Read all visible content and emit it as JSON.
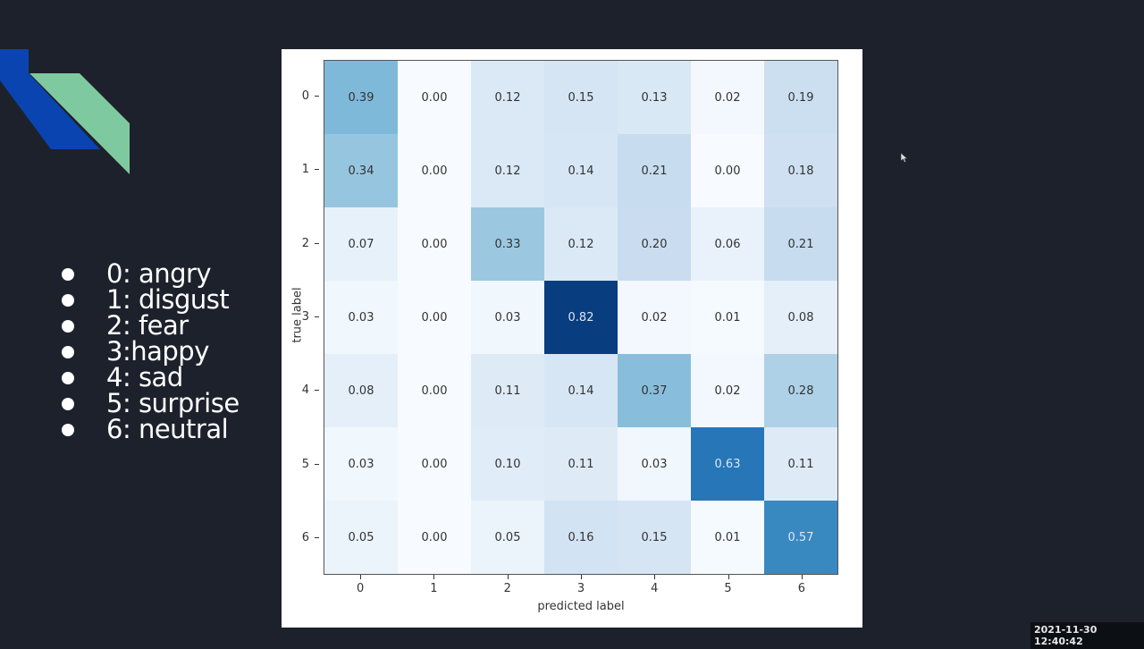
{
  "slide": {
    "background": "#1d212b",
    "accent_colors": {
      "blue": "#0a44b0",
      "green": "#7fc9a1"
    },
    "legend_items": [
      {
        "label": "0: angry"
      },
      {
        "label": "1: disgust"
      },
      {
        "label": "2: fear"
      },
      {
        "label": "3:happy"
      },
      {
        "label": "4: sad"
      },
      {
        "label": "5: surprise"
      },
      {
        "label": "6: neutral"
      }
    ]
  },
  "timestamp": "2021-11-30 12:40:42",
  "chart_data": {
    "type": "heatmap",
    "title": "",
    "xlabel": "predicted label",
    "ylabel": "true label",
    "x_ticks": [
      "0",
      "1",
      "2",
      "3",
      "4",
      "5",
      "6"
    ],
    "y_ticks": [
      "0",
      "1",
      "2",
      "3",
      "4",
      "5",
      "6"
    ],
    "colormap": "Blues",
    "values": [
      [
        "0.39",
        "0.00",
        "0.12",
        "0.15",
        "0.13",
        "0.02",
        "0.19"
      ],
      [
        "0.34",
        "0.00",
        "0.12",
        "0.14",
        "0.21",
        "0.00",
        "0.18"
      ],
      [
        "0.07",
        "0.00",
        "0.33",
        "0.12",
        "0.20",
        "0.06",
        "0.21"
      ],
      [
        "0.03",
        "0.00",
        "0.03",
        "0.82",
        "0.02",
        "0.01",
        "0.08"
      ],
      [
        "0.08",
        "0.00",
        "0.11",
        "0.14",
        "0.37",
        "0.02",
        "0.28"
      ],
      [
        "0.03",
        "0.00",
        "0.10",
        "0.11",
        "0.03",
        "0.63",
        "0.11"
      ],
      [
        "0.05",
        "0.00",
        "0.05",
        "0.16",
        "0.15",
        "0.01",
        "0.57"
      ]
    ]
  }
}
